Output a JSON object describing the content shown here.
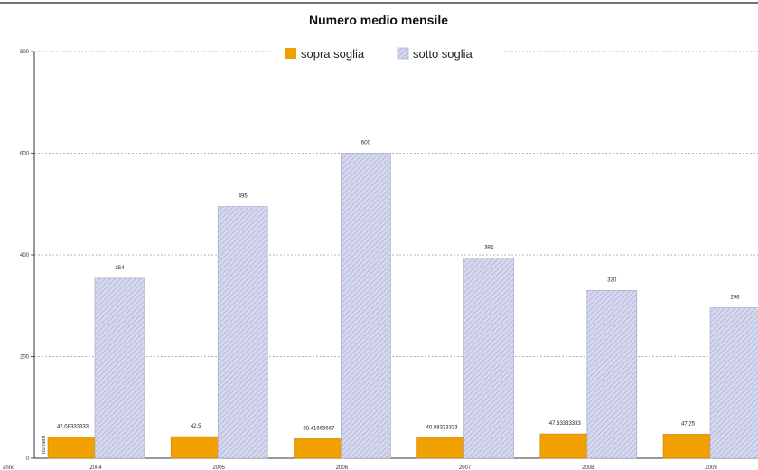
{
  "chart_data": {
    "type": "bar",
    "title": "Numero medio mensile",
    "xlabel": "anno",
    "ylabel": "numero",
    "categories": [
      "2004",
      "2005",
      "2006",
      "2007",
      "2008",
      "2009"
    ],
    "series": [
      {
        "name": "sopra soglia",
        "color": "#f0a000",
        "values": [
          42.08333333,
          42.5,
          38.41666667,
          40.08333333,
          47.83333333,
          47.25
        ],
        "labels": [
          "42.08333333",
          "42.5",
          "38.41666667",
          "40.08333333",
          "47.83333333",
          "47.25"
        ]
      },
      {
        "name": "sotto soglia",
        "color": "#c8cce6",
        "values": [
          354,
          495,
          600,
          394,
          330,
          296
        ],
        "labels": [
          "354",
          "495",
          "600",
          "394",
          "330",
          "296"
        ]
      }
    ],
    "y_ticks": [
      0,
      200,
      400,
      600,
      800
    ],
    "ylim": [
      0,
      800
    ],
    "grid": true,
    "legend_position": "top-center"
  }
}
